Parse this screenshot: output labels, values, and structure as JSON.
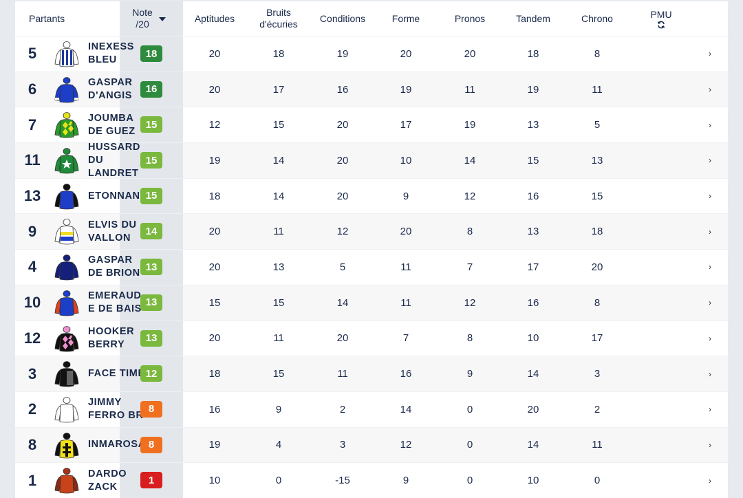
{
  "headers": {
    "partants": "Partants",
    "note_line1": "Note",
    "note_line2": "/20",
    "aptitudes": "Aptitudes",
    "bruits_line1": "Bruits",
    "bruits_line2": "d'écuries",
    "conditions": "Conditions",
    "forme": "Forme",
    "pronos": "Pronos",
    "tandem": "Tandem",
    "chrono": "Chrono",
    "pmu": "PMU",
    "pmu_icon": "refresh-icon"
  },
  "colors": {
    "dark_green": "#2e8b3d",
    "light_green": "#7ab83e",
    "orange": "#f07020",
    "red": "#d81e1e"
  },
  "rows": [
    {
      "num": "5",
      "name": "INEXESS BLEU",
      "note": "18",
      "note_color": "#2e8b3d",
      "silk": "stripes-blue-white",
      "aptitudes": "20",
      "bruits": "18",
      "conditions": "19",
      "forme": "20",
      "pronos": "20",
      "tandem": "18",
      "chrono": "8"
    },
    {
      "num": "6",
      "name": "GASPAR D'ANGIS",
      "note": "16",
      "note_color": "#2e8b3d",
      "silk": "blue-white-sleeves",
      "aptitudes": "20",
      "bruits": "17",
      "conditions": "16",
      "forme": "19",
      "pronos": "11",
      "tandem": "19",
      "chrono": "11"
    },
    {
      "num": "7",
      "name": "JOUMBA DE GUEZ",
      "note": "15",
      "note_color": "#7ab83e",
      "silk": "green-yellow-diamonds",
      "aptitudes": "12",
      "bruits": "15",
      "conditions": "20",
      "forme": "17",
      "pronos": "19",
      "tandem": "13",
      "chrono": "5"
    },
    {
      "num": "11",
      "name": "HUSSARD DU LANDRET",
      "note": "15",
      "note_color": "#7ab83e",
      "silk": "green-white-star",
      "aptitudes": "19",
      "bruits": "14",
      "conditions": "20",
      "forme": "10",
      "pronos": "14",
      "tandem": "15",
      "chrono": "13"
    },
    {
      "num": "13",
      "name": "ETONNANT",
      "note": "15",
      "note_color": "#7ab83e",
      "silk": "black-blue-body",
      "aptitudes": "18",
      "bruits": "14",
      "conditions": "20",
      "forme": "9",
      "pronos": "12",
      "tandem": "16",
      "chrono": "15"
    },
    {
      "num": "9",
      "name": "ELVIS DU VALLON",
      "note": "14",
      "note_color": "#7ab83e",
      "silk": "white-yellow-blue-bands",
      "aptitudes": "20",
      "bruits": "11",
      "conditions": "12",
      "forme": "20",
      "pronos": "8",
      "tandem": "13",
      "chrono": "18"
    },
    {
      "num": "4",
      "name": "GASPAR DE BRION",
      "note": "13",
      "note_color": "#7ab83e",
      "silk": "dark-blue",
      "aptitudes": "20",
      "bruits": "13",
      "conditions": "5",
      "forme": "11",
      "pronos": "7",
      "tandem": "17",
      "chrono": "20"
    },
    {
      "num": "10",
      "name": "EMERAUDE DE BAIS",
      "note": "13",
      "note_color": "#7ab83e",
      "silk": "blue-red-sleeves",
      "aptitudes": "15",
      "bruits": "15",
      "conditions": "14",
      "forme": "11",
      "pronos": "12",
      "tandem": "16",
      "chrono": "8"
    },
    {
      "num": "12",
      "name": "HOOKER BERRY",
      "note": "13",
      "note_color": "#7ab83e",
      "silk": "black-pink-diamonds",
      "aptitudes": "20",
      "bruits": "11",
      "conditions": "20",
      "forme": "7",
      "pronos": "8",
      "tandem": "10",
      "chrono": "17"
    },
    {
      "num": "3",
      "name": "FACE TIME",
      "note": "12",
      "note_color": "#7ab83e",
      "silk": "black-white",
      "aptitudes": "18",
      "bruits": "15",
      "conditions": "11",
      "forme": "16",
      "pronos": "9",
      "tandem": "14",
      "chrono": "3"
    },
    {
      "num": "2",
      "name": "JIMMY FERRO BR",
      "note": "8",
      "note_color": "#f07020",
      "silk": "white",
      "aptitudes": "16",
      "bruits": "9",
      "conditions": "2",
      "forme": "14",
      "pronos": "0",
      "tandem": "20",
      "chrono": "2"
    },
    {
      "num": "8",
      "name": "INMAROSA",
      "note": "8",
      "note_color": "#f07020",
      "silk": "yellow-black-cross",
      "aptitudes": "19",
      "bruits": "4",
      "conditions": "3",
      "forme": "12",
      "pronos": "0",
      "tandem": "14",
      "chrono": "11"
    },
    {
      "num": "1",
      "name": "DARDO ZACK",
      "note": "1",
      "note_color": "#d81e1e",
      "silk": "brown-orange",
      "aptitudes": "10",
      "bruits": "0",
      "conditions": "-15",
      "forme": "9",
      "pronos": "0",
      "tandem": "10",
      "chrono": "0"
    }
  ],
  "chevron": "›"
}
